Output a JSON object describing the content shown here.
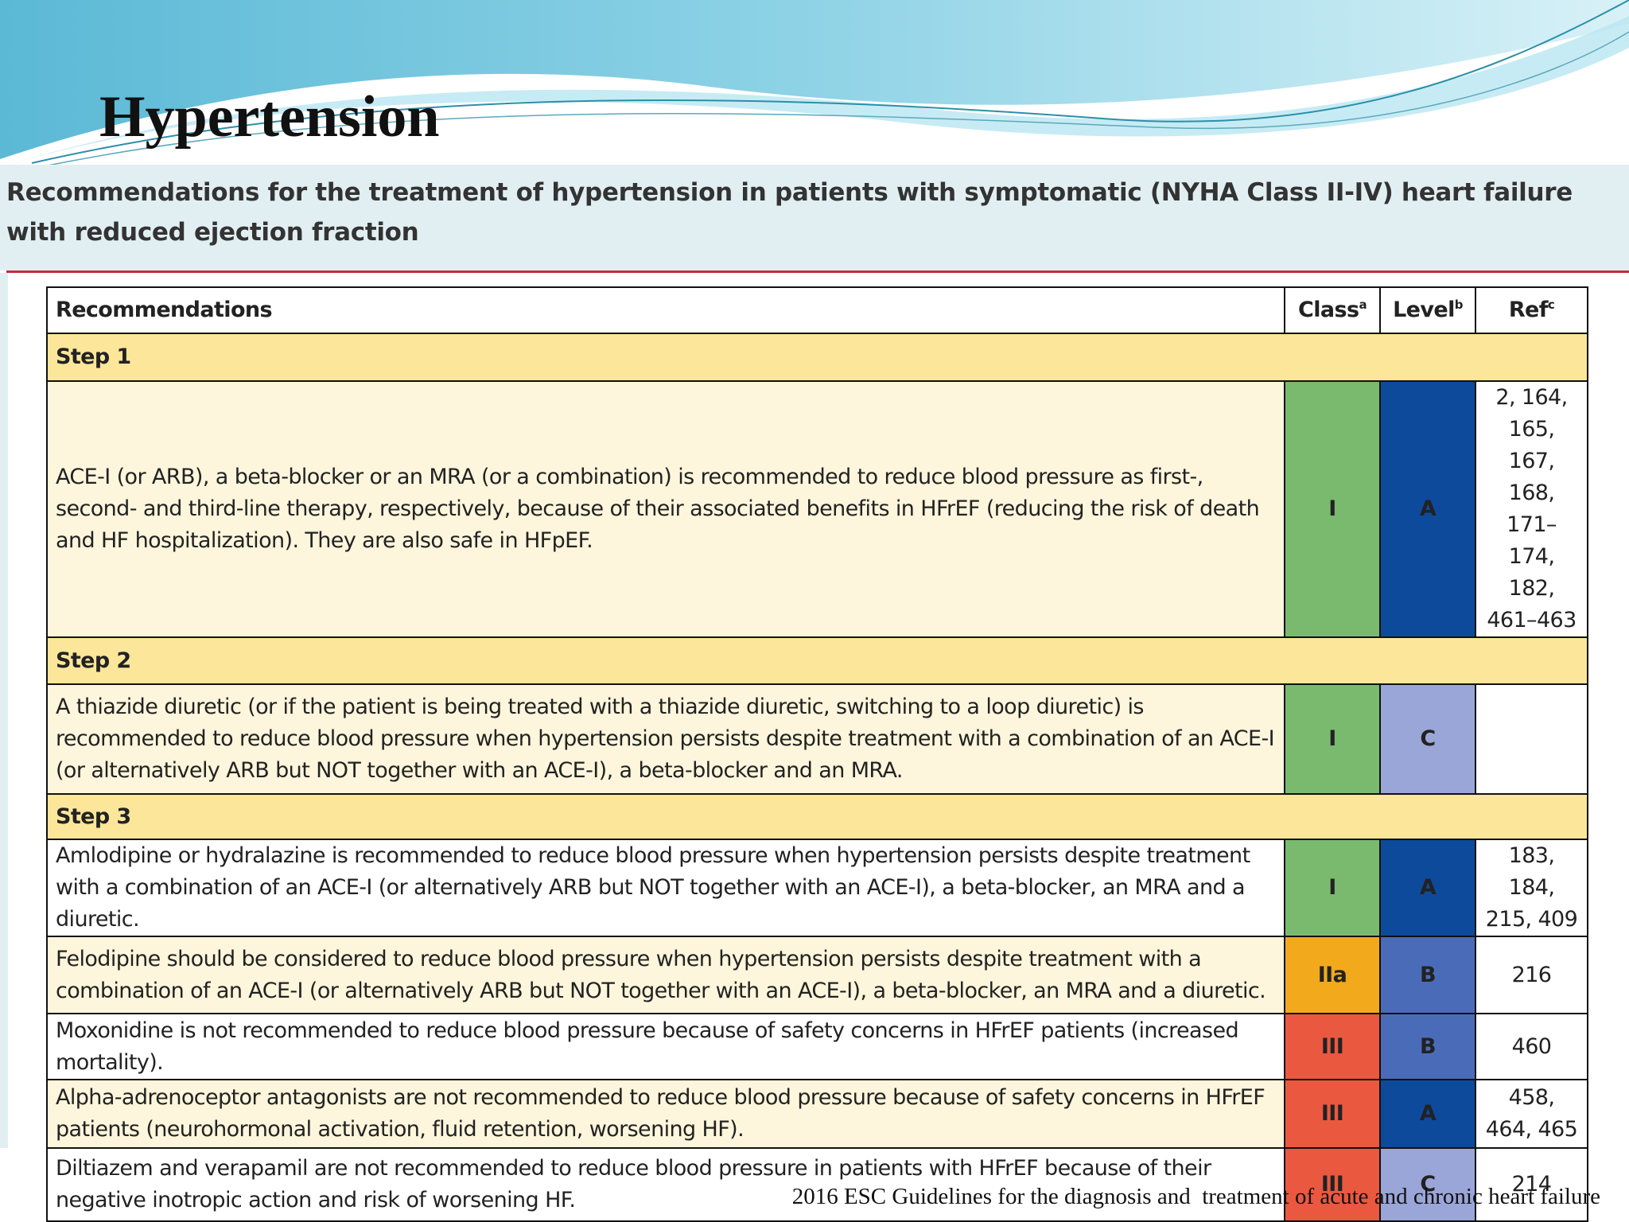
{
  "title": "Hypertension",
  "subtitle": "Recommendations for the treatment of hypertension in patients with symptomatic (NYHA Class II-IV) heart failure with reduced ejection fraction",
  "table": {
    "header": [
      {
        "text": "Recommendations"
      },
      {
        "text": "Class",
        "sup": "a"
      },
      {
        "text": "Level",
        "sup": "b"
      },
      {
        "text": "Ref",
        "sup": "c"
      }
    ],
    "sections": [
      {
        "step": "Step 1",
        "items": [
          {
            "text": "ACE-I (or ARB), a beta-blocker or an MRA (or a combination) is recommended to reduce blood pressure as first-, second- and third-line therapy, respectively, because of their associated benefits in HFrEF (reducing the risk of death and HF hospitalization). They are also safe in HFpEF.",
            "class": "I",
            "class_color": "#7aba6e",
            "level": "A",
            "level_color": "#0d4a9c",
            "ref": "2, 164, 165, 167, 168, 171–174, 182, 461–463"
          }
        ]
      },
      {
        "step": "Step 2",
        "items": [
          {
            "text": "A thiazide diuretic (or if the patient is being treated with a thiazide diuretic, switching to a loop diuretic) is recommended to reduce blood pressure when hypertension persists despite treatment with a combination of an ACE-I (or alternatively ARB but NOT together with an ACE-I), a beta-blocker and an MRA.",
            "class": "I",
            "class_color": "#7aba6e",
            "level": "C",
            "level_color": "#9aa6d8"
          }
        ]
      },
      {
        "step": "Step 3",
        "items": [
          {
            "text": "Amlodipine or hydralazine is recommended to reduce blood pressure when hypertension persists despite treatment with a combination of an ACE-I (or alternatively ARB but NOT together with an ACE-I), a beta-blocker, an MRA and a diuretic.",
            "class": "I",
            "class_color": "#7aba6e",
            "level": "A",
            "level_color": "#0d4a9c",
            "ref": "183, 184, 215, 409"
          },
          {
            "text": "Felodipine should be considered to reduce blood pressure when hypertension persists despite treatment with a combination of an ACE-I (or alternatively ARB but NOT together with an ACE-I), a beta-blocker, an MRA and a diuretic.",
            "class": "IIa",
            "class_color": "#f2a91c",
            "level": "B",
            "level_color": "#4a6cb8",
            "ref": "216"
          },
          {
            "text": "Moxonidine is not recommended to reduce blood pressure because of safety concerns in HFrEF patients (increased mortality).",
            "class": "III",
            "class_color": "#ea5840",
            "level": "B",
            "level_color": "#4a6cb8",
            "ref": "460"
          },
          {
            "text": "Alpha-adrenoceptor antagonists are not recommended to reduce blood pressure because of safety concerns in HFrEF patients (neurohormonal activation, fluid retention, worsening HF).",
            "class": "III",
            "class_color": "#ea5840",
            "level": "A",
            "level_color": "#0d4a9c",
            "ref": "458, 464, 465"
          },
          {
            "text": "Diltiazem and verapamil are not recommended to reduce blood pressure in patients with HFrEF because of their negative inotropic action and risk of worsening HF.",
            "class": "III",
            "class_color": "#ea5840",
            "level": "C",
            "level_color": "#9aa6d8",
            "ref": "214"
          }
        ]
      }
    ]
  },
  "footer": "2016 ESC Guidelines for the diagnosis and  treatment of acute and chronic heart failure"
}
